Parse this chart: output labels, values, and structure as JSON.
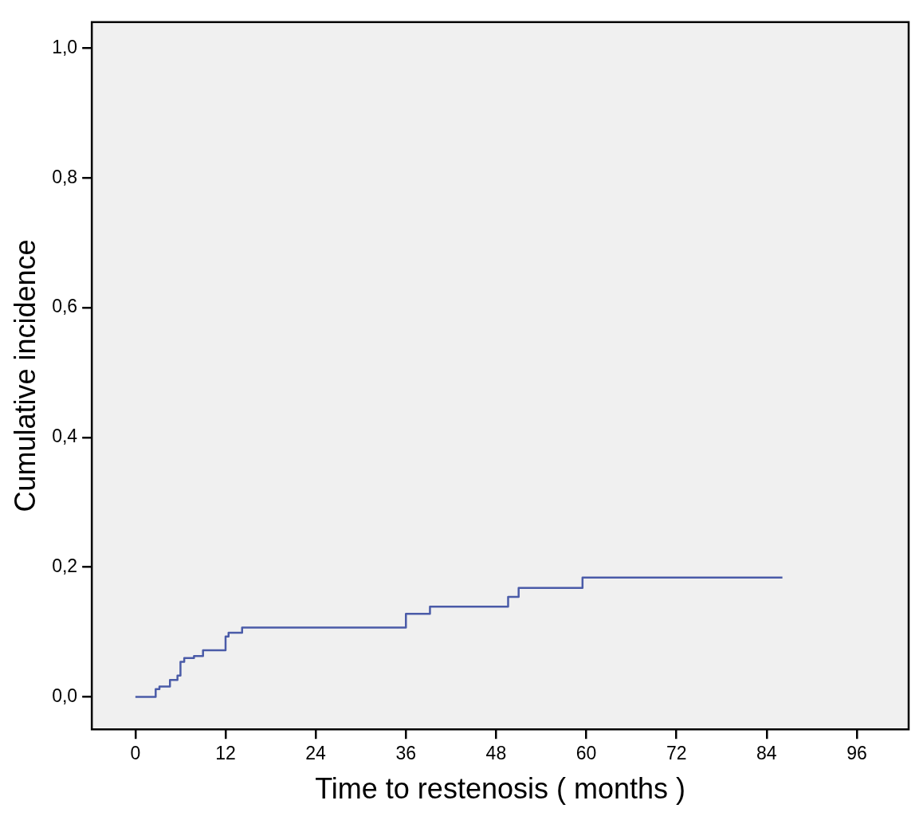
{
  "chart_data": {
    "type": "step",
    "xlabel": "Time to restenosis ( months )",
    "ylabel": "Cumulative incidence",
    "xlim": [
      -5.8,
      102.9
    ],
    "xticks": [
      0,
      12,
      24,
      36,
      48,
      60,
      72,
      84,
      96
    ],
    "ylim": [
      -0.05,
      1.04
    ],
    "yticks": [
      {
        "value": 0,
        "label": "0,0"
      },
      {
        "value": 0.2,
        "label": "0,2"
      },
      {
        "value": 0.4,
        "label": "0,4"
      },
      {
        "value": 0.6,
        "label": "0,6"
      },
      {
        "value": 0.8,
        "label": "0,8"
      },
      {
        "value": 1,
        "label": "1,0"
      }
    ],
    "grid": false,
    "legend": false,
    "series": [
      {
        "color": "#4a5ba8",
        "x": [
          0,
          2.7,
          3.2,
          4.6,
          5.6,
          6.0,
          6.5,
          7.8,
          9.0,
          12.0,
          12.4,
          14.2,
          36,
          39.2,
          49.6,
          51,
          59.5,
          86.1
        ],
        "values": [
          0,
          0.012,
          0.016,
          0.026,
          0.033,
          0.054,
          0.06,
          0.063,
          0.072,
          0.093,
          0.099,
          0.107,
          0.128,
          0.139,
          0.154,
          0.168,
          0.184,
          0.184
        ]
      }
    ]
  }
}
